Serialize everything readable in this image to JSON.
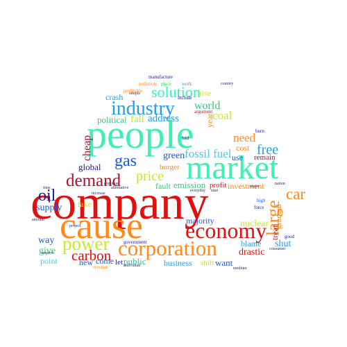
{
  "colors": {
    "red": "#e01010",
    "orange": "#ff8a1a",
    "mint": "#3ef0b4",
    "lime": "#c6ea2a",
    "blue": "#1a5ad8",
    "azure": "#1e9ef0",
    "navy": "#1a1a8a",
    "darkred": "#b0102a",
    "sky": "#4fc8e8",
    "green": "#38c87a",
    "brown": "#8a5a1a"
  },
  "words": {
    "company": "company",
    "cause": "cause",
    "people": "people",
    "market": "market",
    "economy": "economy",
    "corporation": "corporation",
    "industry": "industry",
    "solution": "solution",
    "demand": "demand",
    "power": "power",
    "carbon": "carbon",
    "oil": "oil",
    "gas": "gas",
    "price": "price",
    "car": "car",
    "large": "large",
    "free": "free",
    "fossil_fuel": "fossil fuel",
    "coal": "coal",
    "need": "need",
    "world": "world",
    "address": "address",
    "fall": "fall",
    "political": "political",
    "crash": "crash",
    "cheap": "cheap",
    "green": "green",
    "global": "global",
    "supply": "supply",
    "way": "way",
    "give": "give",
    "point": "point",
    "emission": "emission",
    "investment": "investment",
    "nuclear": "nuclear",
    "majority": "majority",
    "drastic": "drastic",
    "blame": "blame",
    "shut": "shut",
    "public": "public",
    "business": "business",
    "want": "want",
    "shift": "shift",
    "new": "new",
    "come": "come",
    "let": "let",
    "cost": "cost",
    "use": "use",
    "remain": "remain",
    "profit": "profit",
    "fault": "fault",
    "take": "take",
    "burger": "burger",
    "rise": "rise",
    "year": "year",
    "gradual": "gradual",
    "treat": "treat",
    "manufacture": "manufacture",
    "pollution": "pollution",
    "work": "work",
    "place": "place",
    "profitable": "profitable",
    "include": "include",
    "argument": "argument",
    "bad": "bad",
    "burn": "burn",
    "high": "high",
    "force": "force",
    "government": "government",
    "revenue": "revenue",
    "consumer": "consumer",
    "good": "good",
    "amount": "amount",
    "require": "require",
    "project": "project",
    "alternative": "alternative",
    "country": "country",
    "major": "major",
    "time": "time",
    "individual": "individual",
    "start": "start",
    "increase": "increase",
    "medium": "medium",
    "everyday": "everyday",
    "nation": "nation",
    "continue": "continue",
    "simple": "simple"
  }
}
